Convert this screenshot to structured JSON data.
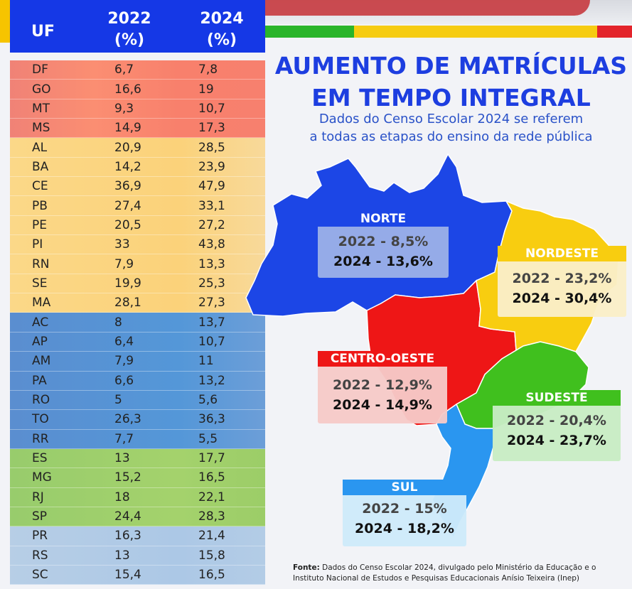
{
  "header": {
    "col1": "UF",
    "col2": "2022 (%)",
    "col3": "2024 (%)"
  },
  "table": [
    {
      "uf": "DF",
      "v2022": "6,7",
      "v2024": "7,8",
      "region": "co"
    },
    {
      "uf": "GO",
      "v2022": "16,6",
      "v2024": "19",
      "region": "co"
    },
    {
      "uf": "MT",
      "v2022": "9,3",
      "v2024": "10,7",
      "region": "co"
    },
    {
      "uf": "MS",
      "v2022": "14,9",
      "v2024": "17,3",
      "region": "co"
    },
    {
      "uf": "AL",
      "v2022": "20,9",
      "v2024": "28,5",
      "region": "ne"
    },
    {
      "uf": "BA",
      "v2022": "14,2",
      "v2024": "23,9",
      "region": "ne"
    },
    {
      "uf": "CE",
      "v2022": "36,9",
      "v2024": "47,9",
      "region": "ne"
    },
    {
      "uf": "PB",
      "v2022": "27,4",
      "v2024": "33,1",
      "region": "ne"
    },
    {
      "uf": "PE",
      "v2022": "20,5",
      "v2024": "27,2",
      "region": "ne"
    },
    {
      "uf": "PI",
      "v2022": "33",
      "v2024": "43,8",
      "region": "ne"
    },
    {
      "uf": "RN",
      "v2022": "7,9",
      "v2024": "13,3",
      "region": "ne"
    },
    {
      "uf": "SE",
      "v2022": "19,9",
      "v2024": "25,3",
      "region": "ne"
    },
    {
      "uf": "MA",
      "v2022": "28,1",
      "v2024": "27,3",
      "region": "ne"
    },
    {
      "uf": "AC",
      "v2022": "8",
      "v2024": "13,7",
      "region": "n"
    },
    {
      "uf": "AP",
      "v2022": "6,4",
      "v2024": "10,7",
      "region": "n"
    },
    {
      "uf": "AM",
      "v2022": "7,9",
      "v2024": "11",
      "region": "n"
    },
    {
      "uf": "PA",
      "v2022": "6,6",
      "v2024": "13,2",
      "region": "n"
    },
    {
      "uf": "RO",
      "v2022": "5",
      "v2024": "5,6",
      "region": "n"
    },
    {
      "uf": "TO",
      "v2022": "26,3",
      "v2024": "36,3",
      "region": "n"
    },
    {
      "uf": "RR",
      "v2022": "7,7",
      "v2024": "5,5",
      "region": "n"
    },
    {
      "uf": "ES",
      "v2022": "13",
      "v2024": "17,7",
      "region": "se"
    },
    {
      "uf": "MG",
      "v2022": "15,2",
      "v2024": "16,5",
      "region": "se"
    },
    {
      "uf": "RJ",
      "v2022": "18",
      "v2024": "22,1",
      "region": "se"
    },
    {
      "uf": "SP",
      "v2022": "24,4",
      "v2024": "28,3",
      "region": "se"
    },
    {
      "uf": "PR",
      "v2022": "16,3",
      "v2024": "21,4",
      "region": "s"
    },
    {
      "uf": "RS",
      "v2022": "13",
      "v2024": "15,8",
      "region": "s"
    },
    {
      "uf": "SC",
      "v2022": "15,4",
      "v2024": "16,5",
      "region": "s"
    }
  ],
  "title": {
    "line1": "AUMENTO DE MATRÍCULAS",
    "line2": "EM TEMPO INTEGRAL"
  },
  "subtitle": {
    "line1": "Dados do Censo Escolar 2024 se referem",
    "line2": "a todas as etapas do ensino da rede pública"
  },
  "regions": {
    "norte": {
      "name": "NORTE",
      "l2022": "2022  -  8,5%",
      "l2024": "2024  -  13,6%"
    },
    "nordeste": {
      "name": "NORDESTE",
      "l2022": "2022  -  23,2%",
      "l2024": "2024  -  30,4%"
    },
    "centro_oeste": {
      "name": "CENTRO-OESTE",
      "l2022": "2022  -  12,9%",
      "l2024": "2024  -  14,9%"
    },
    "sudeste": {
      "name": "SUDESTE",
      "l2022": "2022  -  20,4%",
      "l2024": "2024  -  23,7%"
    },
    "sul": {
      "name": "SUL",
      "l2022": "2022  -  15%",
      "l2024": "2024  -  18,2%"
    }
  },
  "source": {
    "label": "Fonte:",
    "text1": " Dados do Censo Escolar 2024, divulgado pelo Ministério da Educação e o",
    "text2": "Instituto Nacional de Estudos e Pesquisas Educacionais Anísio Teixeira (Inep)"
  },
  "colors": {
    "norte": "#1c46e6",
    "nordeste": "#f8cd10",
    "centro_oeste": "#ee1616",
    "sudeste": "#40c01e",
    "sul": "#2a96f0",
    "title": "#1d3ee0",
    "header": "#1538e6",
    "stripe_green": "#2ab52a",
    "stripe_yellow": "#f6cc12",
    "stripe_red": "#e3242b"
  }
}
